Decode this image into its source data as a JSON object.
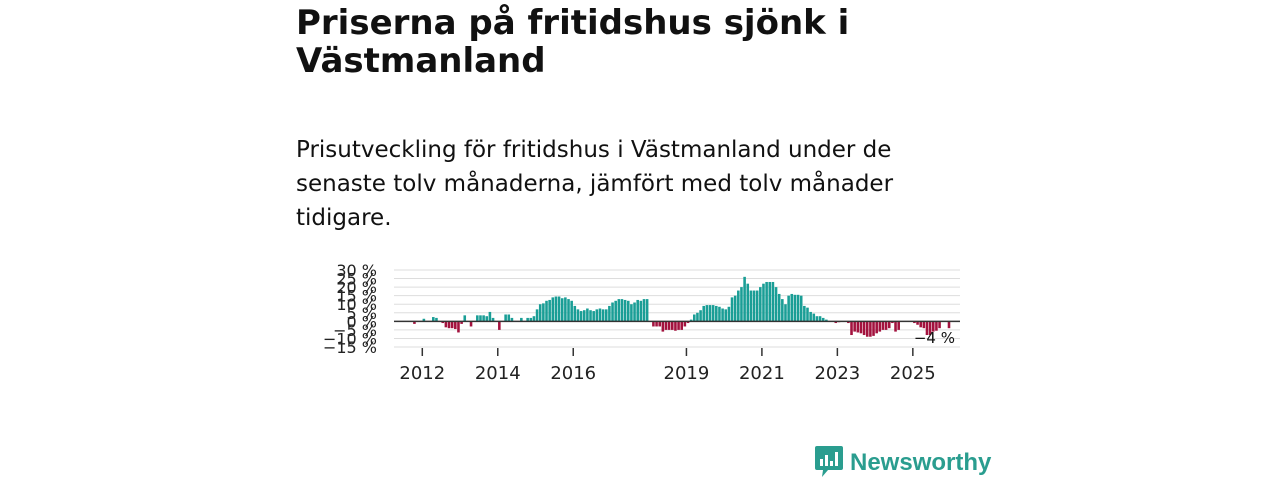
{
  "header": {
    "title": "Priserna på fritidshus sjönk i Västmanland",
    "subtitle": "Prisutveckling för fritidshus i Västmanland under de senaste tolv månaderna, jämfört med tolv månader tidigare."
  },
  "brand": {
    "name": "Newsworthy",
    "icon": "newsworthy-logo-icon"
  },
  "colors": {
    "positive": "#1a9e96",
    "negative": "#a3123e",
    "grid": "#dddddd",
    "zero": "#333333"
  },
  "chart_data": {
    "type": "bar",
    "title": "",
    "xlabel": "",
    "ylabel": "",
    "ylim": [
      -15,
      30
    ],
    "y_ticks": [
      30,
      25,
      20,
      15,
      10,
      5,
      0,
      -5,
      -10,
      -15
    ],
    "y_tick_labels": [
      "30 %",
      "25 %",
      "20 %",
      "15 %",
      "10 %",
      "5 %",
      "0 %",
      "−5 %",
      "−10 %",
      "−15 %"
    ],
    "x_tick_labels": [
      "2012",
      "2014",
      "2016",
      "2019",
      "2021",
      "2023",
      "2025"
    ],
    "x_tick_positions": [
      2012.0,
      2014.0,
      2016.0,
      2019.0,
      2021.0,
      2023.0,
      2025.0
    ],
    "x_range": [
      2011.25,
      2026.25
    ],
    "x_start": 2011.25,
    "months_per_bar": 1,
    "last_label": "−4 %",
    "values": [
      0,
      0,
      0,
      0,
      0,
      0,
      -1.5,
      0,
      0,
      1.5,
      0,
      0,
      2.5,
      2,
      0,
      -1,
      -3.5,
      -4,
      -4,
      -4.5,
      -6.5,
      -1.5,
      3.5,
      0,
      -3,
      0,
      3.5,
      3.5,
      3.5,
      3,
      5.5,
      2,
      0,
      -5,
      0,
      4,
      4,
      2,
      0,
      0,
      2,
      0,
      2,
      2,
      3,
      7,
      10,
      10.5,
      12,
      12.5,
      14,
      14.5,
      14.5,
      13.5,
      14,
      13,
      12,
      9,
      7,
      6,
      6.5,
      7.5,
      6.5,
      6,
      7,
      7.5,
      7,
      7,
      9,
      11,
      12,
      13,
      13,
      12.5,
      12,
      10,
      11,
      12.5,
      12,
      13,
      13,
      0,
      -3,
      -3,
      -3,
      -6,
      -5,
      -5,
      -5,
      -5.5,
      -5,
      -5,
      -3,
      -1,
      1,
      4,
      5,
      6.5,
      9,
      9.5,
      9.5,
      9.5,
      9,
      8.5,
      7.5,
      7,
      8.5,
      14,
      15,
      18,
      20,
      26,
      22,
      18,
      18,
      18,
      20,
      22,
      23,
      23,
      23,
      20,
      16,
      13,
      10,
      15,
      16,
      15.5,
      15.5,
      15,
      9,
      8,
      5.5,
      4.5,
      3,
      3,
      2,
      1,
      0,
      0,
      -1,
      -0.5,
      0,
      0,
      -1,
      -8,
      -6,
      -6.5,
      -7,
      -8,
      -9,
      -9,
      -8.5,
      -7,
      -6,
      -5,
      -5,
      -4,
      -1,
      -6,
      -5,
      0,
      0,
      0,
      0,
      -1,
      -2,
      -3.5,
      -4,
      -8,
      -8,
      -6,
      -5.5,
      -4,
      0,
      0,
      -4
    ]
  }
}
